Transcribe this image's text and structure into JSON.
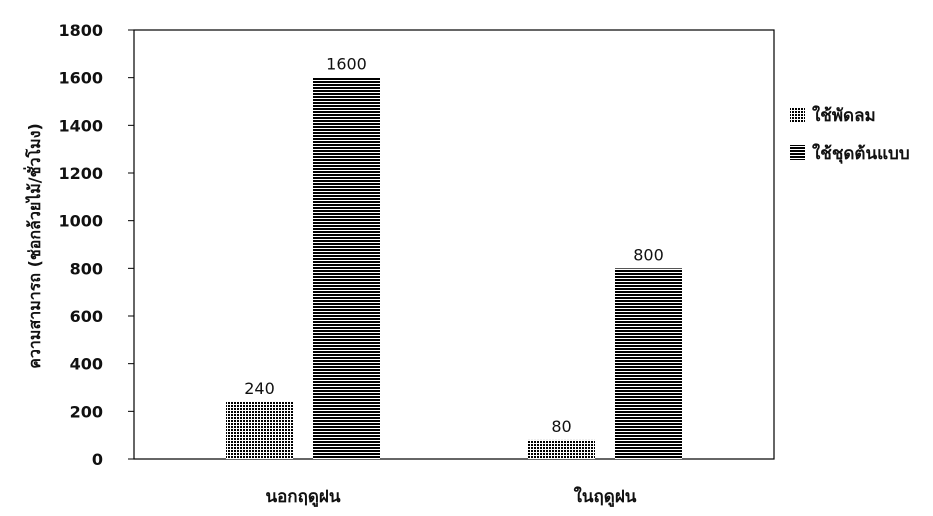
{
  "chart_data": {
    "type": "bar",
    "title": "",
    "xlabel": "",
    "ylabel": "ความสามารถ (ช่อกล้วยไม้/ชั่วโมง)",
    "ylim": [
      0,
      1800
    ],
    "yticks": [
      0,
      200,
      400,
      600,
      800,
      1000,
      1200,
      1400,
      1600,
      1800
    ],
    "categories": [
      "นอกฤดูฝน",
      "ในฤดูฝน"
    ],
    "series": [
      {
        "name": "ใช้พัดลม",
        "values": [
          240,
          80
        ],
        "pattern": "dots"
      },
      {
        "name": "ใช้ชุดต้นแบบ",
        "values": [
          1600,
          800
        ],
        "pattern": "hlines"
      }
    ],
    "data_labels": true,
    "grid": false,
    "legend_position": "right",
    "colors": {
      "bar": "#000000",
      "background": "#ffffff",
      "frame": "#000000"
    }
  }
}
